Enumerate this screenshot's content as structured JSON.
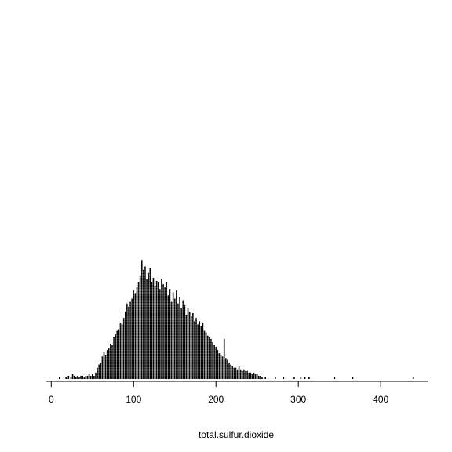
{
  "chart_data": {
    "type": "dotplot",
    "xlabel": "total.sulfur.dioxide",
    "xlim": [
      -6,
      457
    ],
    "x_ticks": [
      0,
      100,
      200,
      300,
      400
    ],
    "x_tick_labels": [
      "0",
      "100",
      "200",
      "300",
      "400"
    ],
    "grid": false,
    "legend": "none",
    "mark_color": "#000000",
    "description_of_data": "stacked dot plot (stripchart) of counts per integer value",
    "y_label": "",
    "points": [
      [
        10,
        1
      ],
      [
        18,
        1
      ],
      [
        21,
        2
      ],
      [
        24,
        1
      ],
      [
        26,
        3
      ],
      [
        28,
        2
      ],
      [
        30,
        1
      ],
      [
        32,
        2
      ],
      [
        34,
        1
      ],
      [
        36,
        2
      ],
      [
        38,
        2
      ],
      [
        40,
        1
      ],
      [
        42,
        2
      ],
      [
        44,
        2
      ],
      [
        46,
        3
      ],
      [
        48,
        2
      ],
      [
        50,
        3
      ],
      [
        52,
        2
      ],
      [
        54,
        4
      ],
      [
        56,
        7
      ],
      [
        58,
        9
      ],
      [
        60,
        10
      ],
      [
        62,
        14
      ],
      [
        64,
        17
      ],
      [
        66,
        15
      ],
      [
        68,
        18
      ],
      [
        70,
        19
      ],
      [
        72,
        22
      ],
      [
        74,
        21
      ],
      [
        76,
        26
      ],
      [
        78,
        28
      ],
      [
        80,
        30
      ],
      [
        82,
        31
      ],
      [
        84,
        35
      ],
      [
        86,
        34
      ],
      [
        88,
        38
      ],
      [
        90,
        42
      ],
      [
        92,
        47
      ],
      [
        94,
        45
      ],
      [
        96,
        48
      ],
      [
        98,
        50
      ],
      [
        100,
        55
      ],
      [
        102,
        53
      ],
      [
        104,
        57
      ],
      [
        106,
        60
      ],
      [
        108,
        64
      ],
      [
        110,
        74
      ],
      [
        112,
        68
      ],
      [
        114,
        70
      ],
      [
        116,
        62
      ],
      [
        118,
        66
      ],
      [
        120,
        69
      ],
      [
        122,
        60
      ],
      [
        124,
        63
      ],
      [
        126,
        58
      ],
      [
        128,
        61
      ],
      [
        130,
        60
      ],
      [
        132,
        56
      ],
      [
        134,
        62
      ],
      [
        136,
        59
      ],
      [
        138,
        57
      ],
      [
        140,
        60
      ],
      [
        142,
        52
      ],
      [
        144,
        56
      ],
      [
        146,
        48
      ],
      [
        148,
        54
      ],
      [
        150,
        50
      ],
      [
        152,
        55
      ],
      [
        154,
        47
      ],
      [
        156,
        51
      ],
      [
        158,
        44
      ],
      [
        160,
        49
      ],
      [
        162,
        46
      ],
      [
        164,
        40
      ],
      [
        166,
        44
      ],
      [
        168,
        42
      ],
      [
        170,
        39
      ],
      [
        172,
        41
      ],
      [
        174,
        36
      ],
      [
        176,
        38
      ],
      [
        178,
        34
      ],
      [
        180,
        36
      ],
      [
        182,
        33
      ],
      [
        184,
        35
      ],
      [
        186,
        30
      ],
      [
        188,
        29
      ],
      [
        190,
        27
      ],
      [
        192,
        26
      ],
      [
        194,
        25
      ],
      [
        196,
        23
      ],
      [
        198,
        21
      ],
      [
        200,
        20
      ],
      [
        202,
        18
      ],
      [
        204,
        16
      ],
      [
        206,
        15
      ],
      [
        208,
        14
      ],
      [
        210,
        25
      ],
      [
        212,
        13
      ],
      [
        214,
        12
      ],
      [
        216,
        10
      ],
      [
        218,
        9
      ],
      [
        220,
        8
      ],
      [
        222,
        7
      ],
      [
        224,
        7
      ],
      [
        226,
        6
      ],
      [
        228,
        8
      ],
      [
        230,
        6
      ],
      [
        232,
        5
      ],
      [
        234,
        6
      ],
      [
        236,
        5
      ],
      [
        238,
        5
      ],
      [
        240,
        4
      ],
      [
        242,
        4
      ],
      [
        244,
        3
      ],
      [
        246,
        4
      ],
      [
        248,
        3
      ],
      [
        250,
        3
      ],
      [
        252,
        2
      ],
      [
        254,
        2
      ],
      [
        256,
        1
      ],
      [
        260,
        1
      ],
      [
        272,
        1
      ],
      [
        282,
        1
      ],
      [
        295,
        1
      ],
      [
        303,
        1
      ],
      [
        308,
        1
      ],
      [
        313,
        1
      ],
      [
        344,
        1
      ],
      [
        366,
        1
      ],
      [
        440,
        1
      ]
    ]
  }
}
